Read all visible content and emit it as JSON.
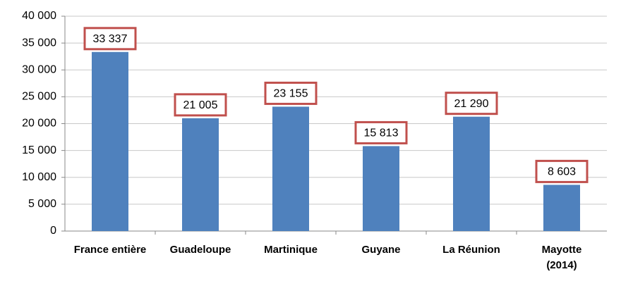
{
  "chart_data": {
    "type": "bar",
    "categories": [
      "France entière",
      "Guadeloupe",
      "Martinique",
      "Guyane",
      "La Réunion",
      "Mayotte\n(2014)"
    ],
    "values": [
      33337,
      21005,
      23155,
      15813,
      21290,
      8603
    ],
    "value_labels": [
      "33 337",
      "21 005",
      "23 155",
      "15 813",
      "21 290",
      "8 603"
    ],
    "color": "#4f81bd",
    "ylim": [
      0,
      40000
    ],
    "yticks": [
      0,
      {
        "value": 5000,
        "label": "5 000"
      },
      {
        "value": 10000,
        "label": "10 000"
      },
      {
        "value": 15000,
        "label": "15 000"
      },
      {
        "value": 20000,
        "label": "20 000"
      },
      {
        "value": 25000,
        "label": "25 000"
      },
      {
        "value": 30000,
        "label": "30 000"
      },
      {
        "value": 35000,
        "label": "35 000"
      },
      {
        "value": 40000,
        "label": "40 000"
      }
    ],
    "grid": true
  }
}
